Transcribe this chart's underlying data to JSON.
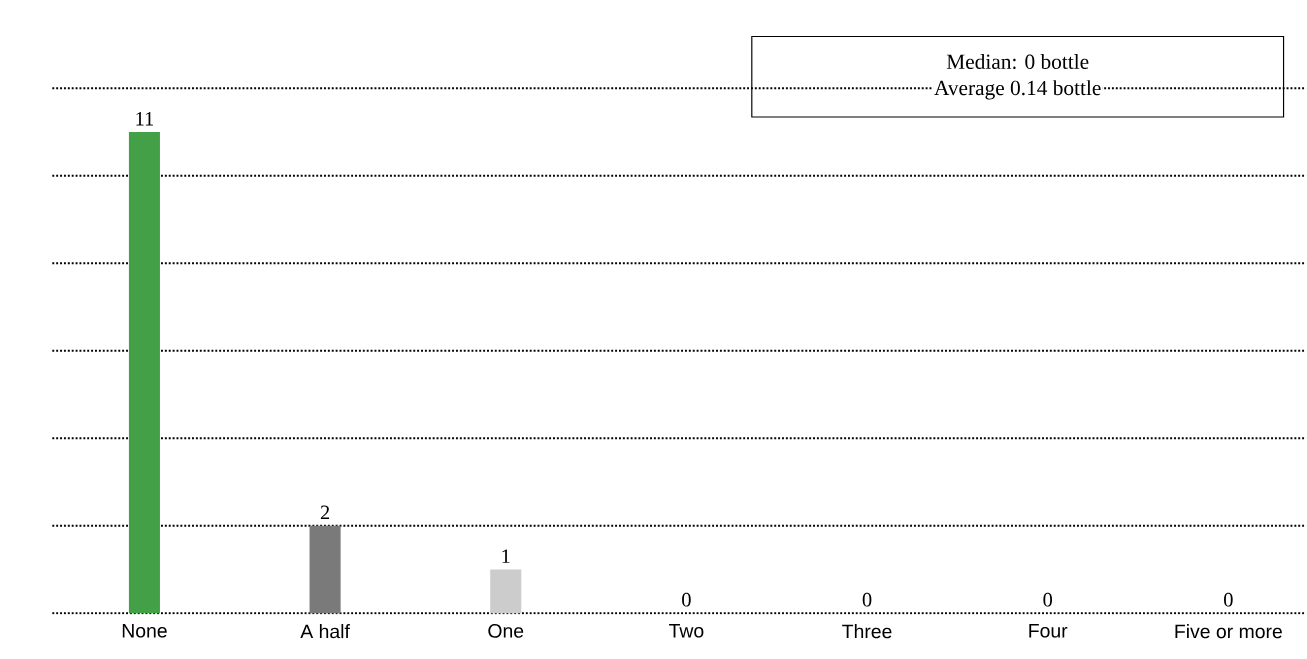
{
  "chart_data": {
    "type": "bar",
    "categories": [
      "None",
      "A half",
      "One",
      "Two",
      "Three",
      "Four",
      "Five or more"
    ],
    "values": [
      11,
      2,
      1,
      0,
      0,
      0,
      0
    ],
    "colors": [
      "#43a047",
      "#7a7a7a",
      "#cccccc",
      "#e0e0e0",
      "#e0e0e0",
      "#e0e0e0",
      "#e0e0e0"
    ],
    "ylim": [
      0,
      12
    ],
    "yticks": [
      {
        "value": 0,
        "label": null
      },
      {
        "value": 2,
        "label": null
      },
      {
        "value": 4,
        "label": null
      },
      {
        "value": 6,
        "label": null
      },
      {
        "value": 8,
        "label": null
      },
      {
        "value": 10,
        "label": null
      },
      {
        "value": 12,
        "label": null
      }
    ],
    "grid": "y",
    "tick_labels": "x",
    "data_labels": true,
    "annotations": [
      "Median: 0 bottle",
      "Average 0.14 bottle"
    ]
  }
}
